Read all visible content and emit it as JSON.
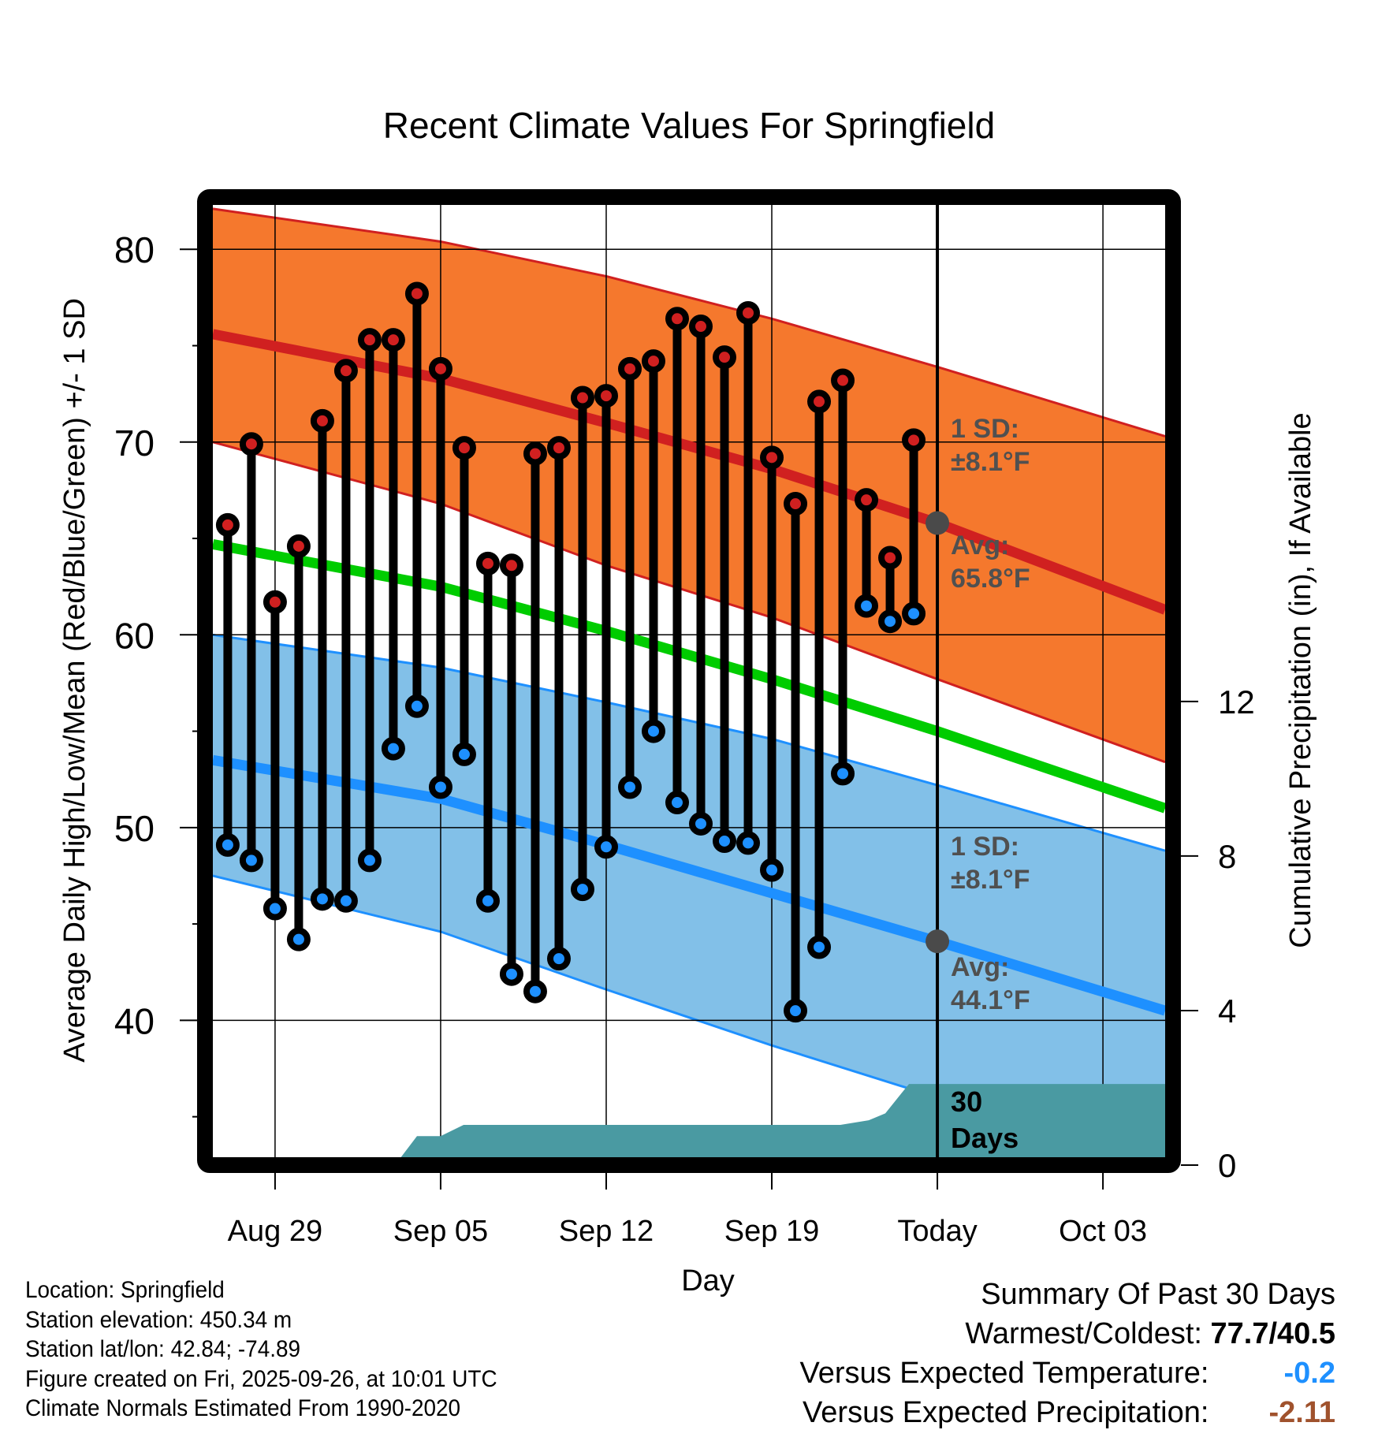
{
  "title": "Recent Climate Values For Springfield",
  "xlabel": "Day",
  "ylabel_left": "Average Daily High/Low/Mean (Red/Blue/Green) +/- 1 SD",
  "ylabel_right": "Cumulative Precipitation (in), If Available",
  "meta": {
    "location": "Location: Springfield",
    "elevation": "Station elevation: 450.34 m",
    "latlon": "Station lat/lon: 42.84; -74.89",
    "created": "Figure created on Fri, 2025-09-26, at 10:01 UTC",
    "normals": "Climate Normals Estimated From 1990-2020"
  },
  "summary": {
    "heading": "Summary Of Past 30 Days",
    "warmest_coldest_label": "Warmest/Coldest:",
    "warmest_coldest_value": "77.7/40.5",
    "temp_label": "Versus Expected Temperature:",
    "temp_value": "-0.2",
    "temp_color": "#1e90ff",
    "precip_label": "Versus Expected Precipitation:",
    "precip_value": "-2.11",
    "precip_color": "#a0522d"
  },
  "annotations": {
    "high_sd_line1": "1 SD:",
    "high_sd_line2": "±8.1°F",
    "high_avg_line1": "Avg:",
    "high_avg_line2": "65.8°F",
    "low_sd_line1": "1 SD:",
    "low_sd_line2": "±8.1°F",
    "low_avg_line1": "Avg:",
    "low_avg_line2": "44.1°F",
    "window_line1": "30",
    "window_line2": "Days"
  },
  "colors": {
    "high_band": "#f5782d",
    "high_line": "#d02020",
    "low_band": "#82c0e8",
    "low_line": "#1e90ff",
    "mean_line": "#00cc00",
    "precip_fill": "#4a9aa2",
    "annotation_text": "#505050"
  },
  "chart_data": {
    "type": "line",
    "title": "Recent Climate Values For Springfield",
    "xlabel": "Day",
    "ylabel": "Average Daily High/Low/Mean (Red/Blue/Green) +/- 1 SD",
    "y2label": "Cumulative Precipitation (in), If Available",
    "ylim": [
      32.9,
      82.3
    ],
    "y2lim": [
      0,
      16.8
    ],
    "xlim_day_offset": [
      -2.63,
      37.63
    ],
    "x_reference_date": "Aug 29",
    "x_ticks": [
      {
        "day": 0,
        "label": "Aug 29"
      },
      {
        "day": 7,
        "label": "Sep 05"
      },
      {
        "day": 14,
        "label": "Sep 12"
      },
      {
        "day": 21,
        "label": "Sep 19"
      },
      {
        "day": 28,
        "label": "Today"
      },
      {
        "day": 35,
        "label": "Oct 03"
      }
    ],
    "y_ticks": [
      40,
      50,
      60,
      70,
      80
    ],
    "y_minor_ticks": [
      35,
      45,
      55,
      65,
      75
    ],
    "y2_ticks": [
      0,
      4,
      8,
      12
    ],
    "grid": true,
    "today_day": 28,
    "observed": {
      "days": [
        -2,
        -1,
        0,
        1,
        2,
        3,
        4,
        5,
        6,
        7,
        8,
        9,
        10,
        11,
        12,
        13,
        14,
        15,
        16,
        17,
        18,
        19,
        20,
        21,
        22,
        23,
        24,
        25,
        26,
        27
      ],
      "highs": [
        65.7,
        69.9,
        61.7,
        64.6,
        71.1,
        73.7,
        75.3,
        75.3,
        77.7,
        73.8,
        69.7,
        63.7,
        63.6,
        69.4,
        69.7,
        72.3,
        72.4,
        73.8,
        74.2,
        76.4,
        76.0,
        74.4,
        76.7,
        69.2,
        66.8,
        72.1,
        73.2,
        67.0,
        64.0,
        70.1
      ],
      "lows": [
        49.1,
        48.3,
        45.8,
        44.2,
        46.3,
        46.2,
        48.3,
        54.1,
        56.3,
        52.1,
        53.8,
        46.2,
        42.4,
        41.5,
        43.2,
        46.8,
        49.0,
        52.1,
        55.0,
        51.3,
        50.2,
        49.3,
        49.2,
        47.8,
        40.5,
        43.8,
        52.8,
        61.5,
        60.7,
        61.1
      ]
    },
    "normals": {
      "days": [
        -2.63,
        7,
        14,
        21,
        28,
        37.63
      ],
      "high_avg": [
        75.6,
        73.3,
        71.0,
        68.6,
        65.8,
        61.3
      ],
      "high_upper_sd": [
        82.1,
        80.4,
        78.6,
        76.4,
        73.9,
        70.3
      ],
      "high_lower_sd": [
        70.0,
        66.8,
        63.6,
        60.9,
        57.7,
        53.4
      ],
      "mean": [
        64.7,
        62.5,
        60.2,
        57.7,
        55.0,
        51.0
      ],
      "low_avg": [
        53.5,
        51.5,
        49.1,
        46.6,
        44.1,
        40.5
      ],
      "low_upper_sd": [
        60.0,
        58.3,
        56.5,
        54.6,
        52.2,
        48.8
      ],
      "low_lower_sd": [
        47.5,
        44.6,
        41.6,
        38.7,
        36.0,
        32.7
      ]
    },
    "precipitation": {
      "days": [
        -2.63,
        5.07,
        6.0,
        7.0,
        7.97,
        23.9,
        25.1,
        25.8,
        26.8,
        37.63
      ],
      "cumulative_in": [
        0,
        0,
        0.75,
        0.75,
        1.04,
        1.04,
        1.16,
        1.34,
        2.1,
        2.1
      ]
    },
    "today_markers": {
      "high_avg": 65.8,
      "low_avg": 44.1
    }
  }
}
